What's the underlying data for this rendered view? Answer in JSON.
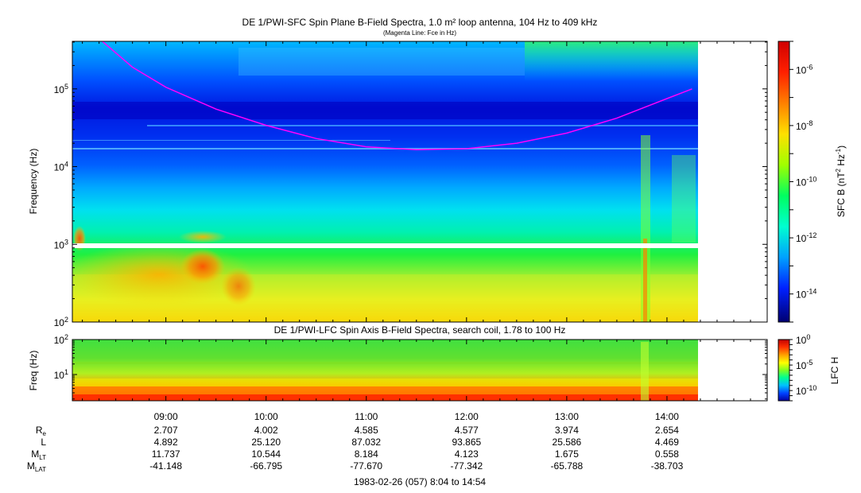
{
  "chart_data": [
    {
      "type": "heatmap",
      "title": "DE 1/PWI-SFC  Spin Plane B-Field Spectra, 1.0 m² loop antenna, 104 Hz to 409 kHz",
      "subtitle": "(Magenta Line: Fce in Hz)",
      "ylabel": "Frequency (Hz)",
      "yscale": "log",
      "ylim": [
        100,
        409000
      ],
      "yticks": [
        "10^2",
        "10^3",
        "10^4",
        "10^5"
      ],
      "colorbar": {
        "label_main": "SFC B (nT",
        "label_sup1": "2",
        "label_mid": " Hz",
        "label_sup2": "-1",
        "label_end": ")",
        "scale": "log",
        "ticks": [
          "10^-6",
          "10^-8",
          "10^-10",
          "10^-12",
          "10^-14"
        ],
        "colors": [
          "#00007a",
          "#0000ff",
          "#0080ff",
          "#00ffff",
          "#00ff80",
          "#80ff00",
          "#ffff00",
          "#ff8000",
          "#ff0000",
          "#d00000"
        ]
      },
      "fce_line": {
        "color": "#ff00ff",
        "x": [
          "08:22",
          "08:40",
          "09:00",
          "09:30",
          "10:00",
          "10:30",
          "11:00",
          "11:30",
          "12:00",
          "12:30",
          "13:00",
          "13:30",
          "14:00",
          "14:15"
        ],
        "y_hz": [
          409000,
          190000,
          105000,
          55000,
          34000,
          23000,
          18000,
          16500,
          17000,
          20000,
          27000,
          42000,
          75000,
          100000
        ]
      }
    },
    {
      "type": "heatmap",
      "title": "DE 1/PWI-LFC  Spin Axis B-Field Spectra, search coil, 1.78 to 100 Hz",
      "ylabel": "Freq (Hz)",
      "yscale": "log",
      "ylim": [
        1.78,
        100
      ],
      "yticks": [
        "10^1",
        "10^2"
      ],
      "colorbar": {
        "label": "LFC H",
        "scale": "log",
        "ticks": [
          "10^0",
          "10^-5",
          "10^-10"
        ],
        "colors": [
          "#0000c0",
          "#0000ff",
          "#0080ff",
          "#00ffff",
          "#00ff80",
          "#80ff00",
          "#ffff00",
          "#ff8000",
          "#ff0000",
          "#c00000"
        ]
      }
    }
  ],
  "time_axis": {
    "ticks": [
      "09:00",
      "10:00",
      "11:00",
      "12:00",
      "13:00",
      "14:00"
    ],
    "xlim": [
      "08:04",
      "15:00"
    ],
    "data_end": "14:54",
    "caption": "1983-02-26 (057) 8:04 to 14:54"
  },
  "ephemeris": [
    {
      "base": "R",
      "sub": "e",
      "values": [
        "2.707",
        "4.002",
        "4.585",
        "4.577",
        "3.974",
        "2.654"
      ]
    },
    {
      "base": "L",
      "sub": "",
      "values": [
        "4.892",
        "25.120",
        "87.032",
        "93.865",
        "25.586",
        "4.469"
      ]
    },
    {
      "base": "M",
      "sub": "LT",
      "values": [
        "11.737",
        "10.544",
        "8.184",
        "4.123",
        "1.675",
        "0.558"
      ]
    },
    {
      "base": "M",
      "sub": "LAT",
      "values": [
        "-41.148",
        "-66.795",
        "-77.670",
        "-77.342",
        "-65.788",
        "-38.703"
      ]
    }
  ]
}
